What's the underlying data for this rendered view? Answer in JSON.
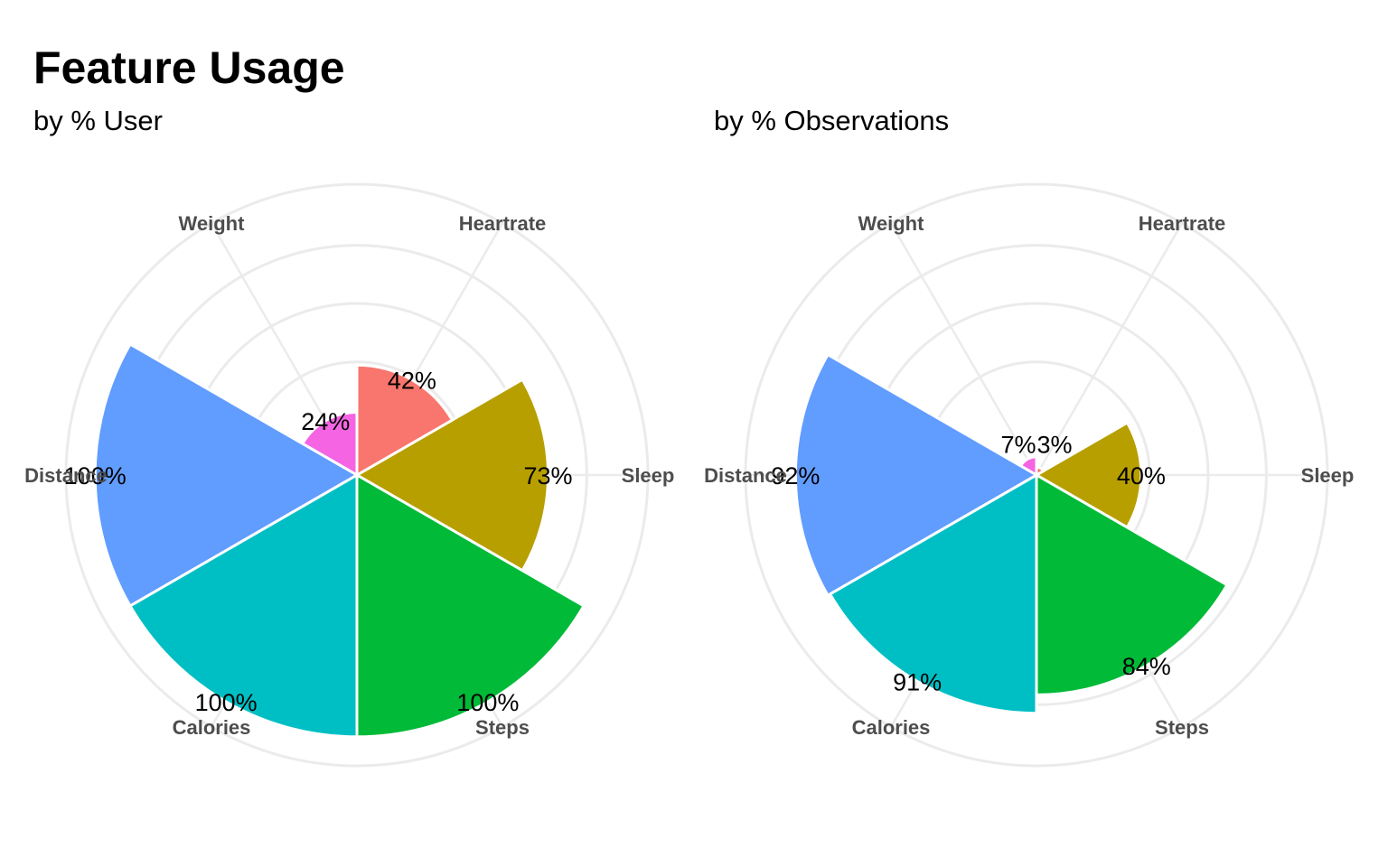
{
  "title": "Feature Usage",
  "chart_data": [
    {
      "type": "pie",
      "subtitle": "by % User",
      "categories": [
        "Sleep",
        "Heartrate",
        "Weight",
        "Distance",
        "Calories",
        "Steps"
      ],
      "values": [
        73,
        42,
        24,
        100,
        100,
        100
      ],
      "value_labels": [
        "73%",
        "42%",
        "24%",
        "100%",
        "100%",
        "100%"
      ],
      "colors": [
        "#B79F00",
        "#F8766D",
        "#F564E3",
        "#619CFF",
        "#00BFC4",
        "#00BA38"
      ],
      "rmax": 100,
      "grid": true,
      "legend": "none"
    },
    {
      "type": "pie",
      "subtitle": "by % Observations",
      "categories": [
        "Sleep",
        "Heartrate",
        "Weight",
        "Distance",
        "Calories",
        "Steps"
      ],
      "values": [
        40,
        3,
        7,
        92,
        91,
        84
      ],
      "value_labels": [
        "40%",
        "3%",
        "7%",
        "92%",
        "91%",
        "84%"
      ],
      "colors": [
        "#B79F00",
        "#F8766D",
        "#F564E3",
        "#619CFF",
        "#00BFC4",
        "#00BA38"
      ],
      "rmax": 100,
      "grid": true,
      "legend": "none"
    }
  ]
}
